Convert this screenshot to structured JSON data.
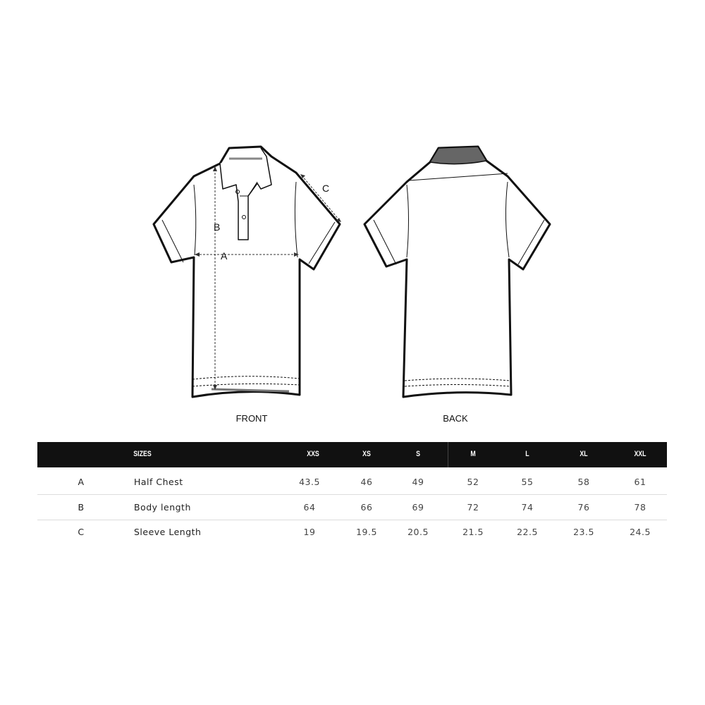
{
  "diagram": {
    "labels": {
      "a": "A",
      "b": "B",
      "c": "C"
    },
    "front_caption": "FRONT",
    "back_caption": "BACK"
  },
  "table": {
    "header": [
      "SIZES",
      "XXS",
      "XS",
      "S",
      "M",
      "L",
      "XL",
      "XXL"
    ],
    "rows": [
      {
        "letter": "A",
        "label": "Half Chest",
        "values": [
          "43.5",
          "46",
          "49",
          "52",
          "55",
          "58",
          "61"
        ]
      },
      {
        "letter": "B",
        "label": "Body length",
        "values": [
          "64",
          "66",
          "69",
          "72",
          "74",
          "76",
          "78"
        ]
      },
      {
        "letter": "C",
        "label": "Sleeve Length",
        "values": [
          "19",
          "19.5",
          "20.5",
          "21.5",
          "22.5",
          "23.5",
          "24.5"
        ]
      }
    ]
  },
  "colors": {
    "header_bg": "#111111",
    "header_text": "#ffffff"
  }
}
